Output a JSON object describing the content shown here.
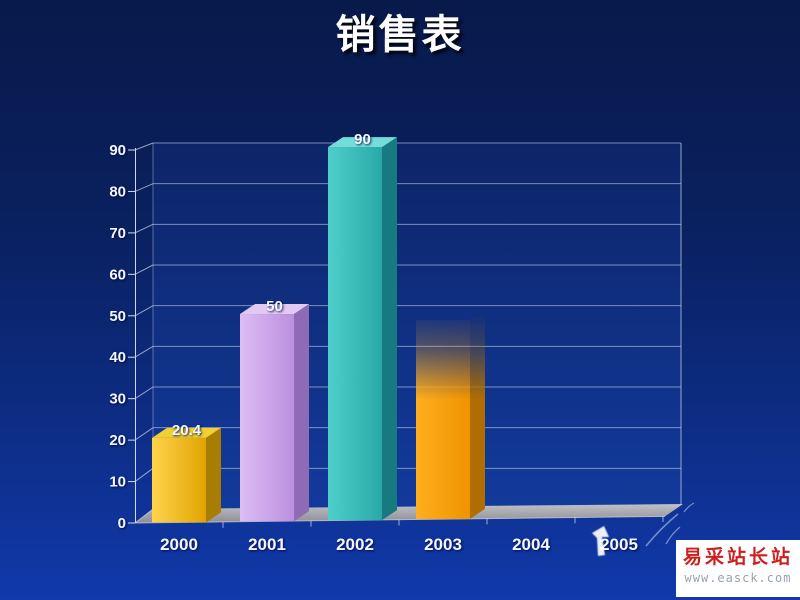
{
  "slide": {
    "title": "销售表",
    "title_color": "#ffffff",
    "background_top": "#081a4a",
    "background_bottom": "#1139ab"
  },
  "chart_data": {
    "type": "bar",
    "style": "3d-perspective-columns",
    "title": "销售表",
    "xlabel": "",
    "ylabel": "",
    "categories": [
      "2000",
      "2001",
      "2002",
      "2003",
      "2004",
      "2005"
    ],
    "values": [
      20.4,
      50,
      90,
      48,
      null,
      null
    ],
    "value_labels": [
      "20.4",
      "50",
      "90",
      "",
      "",
      ""
    ],
    "bars": [
      {
        "category": "2000",
        "value": 20.4,
        "label": "20.4",
        "color": "gold",
        "state": "solid"
      },
      {
        "category": "2001",
        "value": 50,
        "label": "50",
        "color": "purple",
        "state": "solid"
      },
      {
        "category": "2002",
        "value": 90,
        "label": "90",
        "color": "teal",
        "state": "solid"
      },
      {
        "category": "2003",
        "value": 48,
        "label": "",
        "color": "orange",
        "state": "appearing-fade-top"
      },
      {
        "category": "2004",
        "value": null,
        "label": "",
        "color": "",
        "state": "none"
      },
      {
        "category": "2005",
        "value": null,
        "label": "",
        "color": "",
        "state": "none"
      }
    ],
    "ylim": [
      0,
      90
    ],
    "yticks": [
      0,
      10,
      20,
      30,
      40,
      50,
      60,
      70,
      80,
      90
    ],
    "grid": "horizontal-back-wall",
    "legend": "none",
    "palette": {
      "gold": {
        "front_light": "#ffd34d",
        "front_dark": "#e0a400",
        "side": "#a87d04",
        "top": "#f2cf33"
      },
      "purple": {
        "front_light": "#ddbdf4",
        "front_dark": "#ba90e0",
        "side": "#8e6bb4",
        "top": "#e2c9f4"
      },
      "teal": {
        "front_light": "#4fcfca",
        "front_dark": "#29a8a8",
        "side": "#177a80",
        "top": "#73ded9"
      },
      "orange": {
        "front_light": "#ffae1e",
        "front_dark": "#ef9300",
        "side": "#b06e00",
        "top": "#ffc95e"
      }
    },
    "wall_color_top": "#0d2568",
    "wall_color_bottom": "#123a9c",
    "floor_color": "#98999e",
    "gridline_color": "#b9c4e4",
    "axis_color": "#d0d8ee",
    "label_color": "#f5f7ff"
  },
  "watermark": {
    "line1": "易采站长站",
    "line2": "www.easck.com",
    "box_color": "#ffffff",
    "text_color": "#cc1f1f",
    "url_color": "#9aa2ac"
  },
  "cursor": {
    "name": "mouse-pointer",
    "color": "#ffffff"
  }
}
